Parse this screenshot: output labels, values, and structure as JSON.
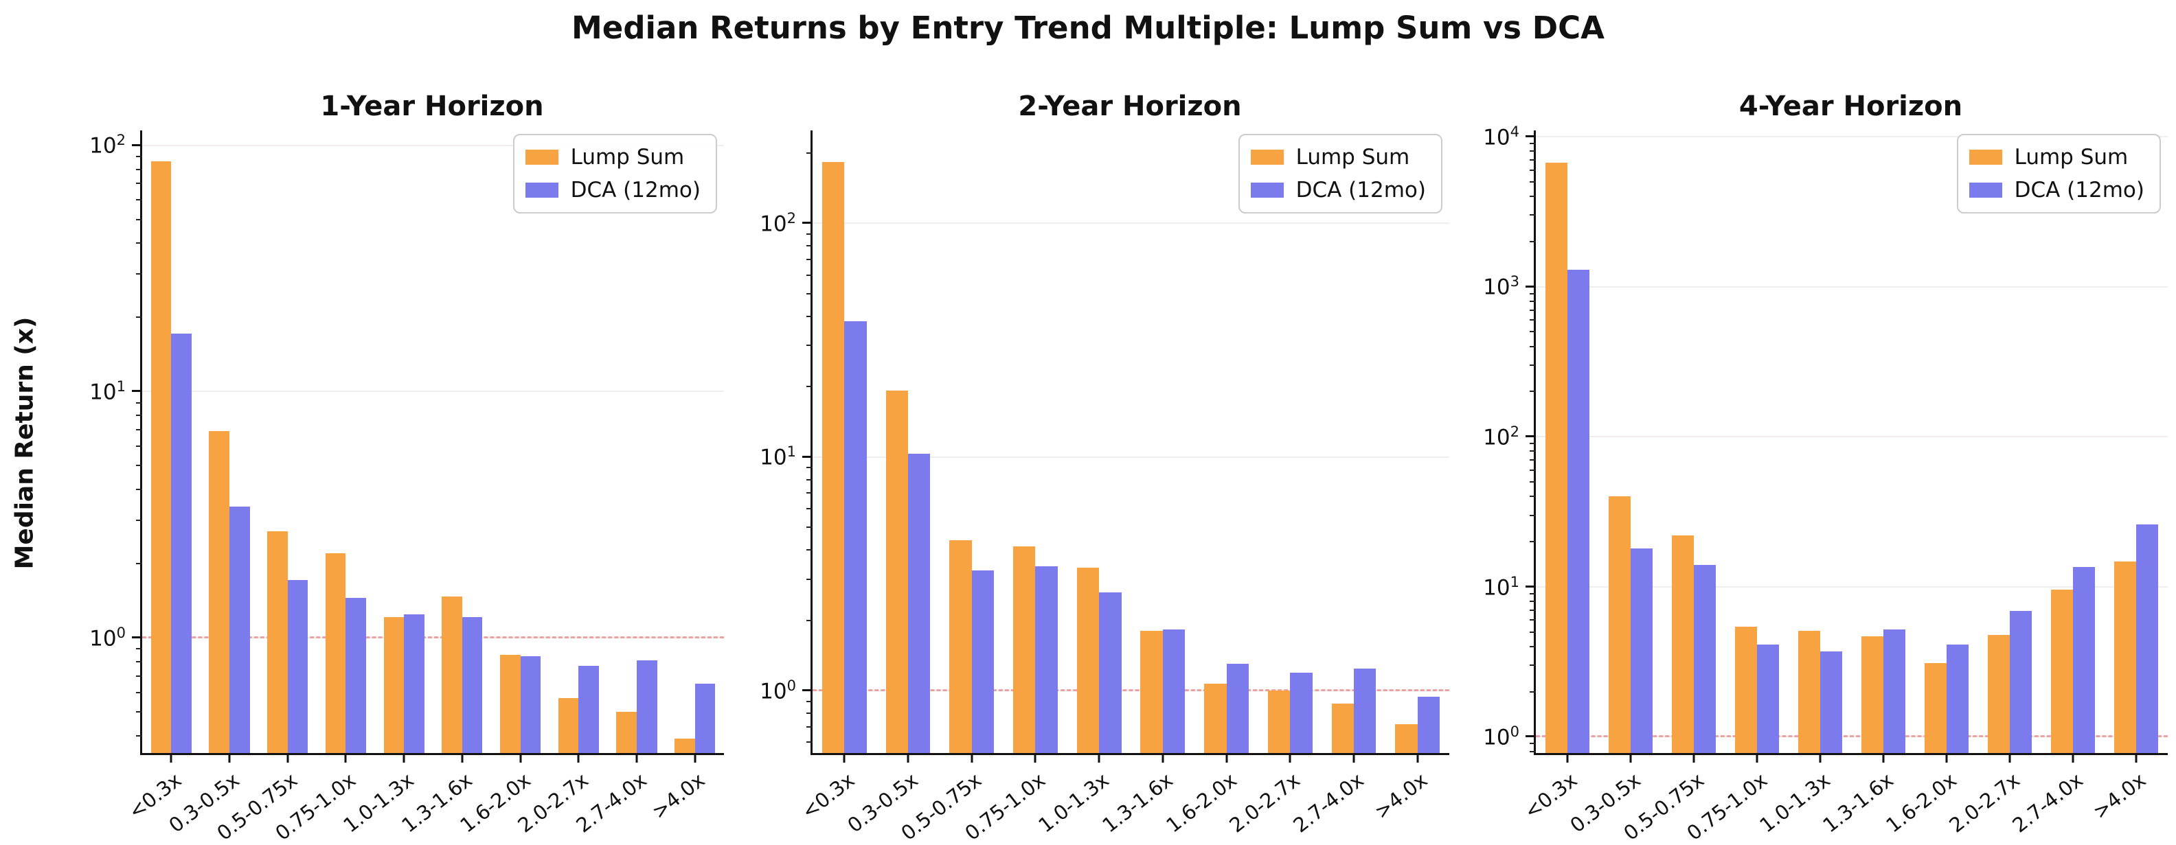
{
  "chart_data": {
    "type": "bar",
    "title": "Median Returns by Entry Trend Multiple: Lump Sum vs DCA",
    "ylabel": "Median Return (x)",
    "legend": [
      "Lump Sum",
      "DCA (12mo)"
    ],
    "legend_position": "upper right",
    "grid": "horizontal decade gridlines, faint",
    "yscale": "log",
    "refline_y": 1.0,
    "colors": {
      "lump_sum": "#F7A342",
      "dca": "#7B7BED",
      "refline": "#E55C5C",
      "gridline": "#F2EDED"
    },
    "categories": [
      "<0.3x",
      "0.3-0.5x",
      "0.5-0.75x",
      "0.75-1.0x",
      "1.0-1.3x",
      "1.3-1.6x",
      "1.6-2.0x",
      "2.0-2.7x",
      "2.7-4.0x",
      ">4.0x"
    ],
    "subplots": [
      {
        "title": "1-Year Horizon",
        "ylim": [
          0.34,
          115
        ],
        "y_tick_exponents": [
          0,
          1,
          2
        ],
        "series": [
          {
            "name": "Lump Sum",
            "values": [
              86,
              6.9,
              2.7,
              2.2,
              1.21,
              1.47,
              0.85,
              0.57,
              0.5,
              0.39
            ]
          },
          {
            "name": "DCA (12mo)",
            "values": [
              17.2,
              3.4,
              1.72,
              1.45,
              1.24,
              1.21,
              0.84,
              0.77,
              0.81,
              0.65
            ]
          }
        ]
      },
      {
        "title": "2-Year Horizon",
        "ylim": [
          0.54,
          250
        ],
        "y_tick_exponents": [
          0,
          1,
          2
        ],
        "series": [
          {
            "name": "Lump Sum",
            "values": [
              183,
              19.2,
              4.4,
              4.15,
              3.35,
              1.8,
              1.07,
              1.0,
              0.88,
              0.72
            ]
          },
          {
            "name": "DCA (12mo)",
            "values": [
              38,
              10.3,
              3.27,
              3.4,
              2.64,
              1.82,
              1.3,
              1.19,
              1.24,
              0.94
            ]
          }
        ]
      },
      {
        "title": "4-Year Horizon",
        "ylim": [
          0.78,
          11000
        ],
        "y_tick_exponents": [
          0,
          1,
          2,
          3,
          4
        ],
        "series": [
          {
            "name": "Lump Sum",
            "values": [
              6700,
              40,
              22,
              5.4,
              5.1,
              4.7,
              3.1,
              4.8,
              9.6,
              14.8
            ]
          },
          {
            "name": "DCA (12mo)",
            "values": [
              1300,
              18,
              14,
              4.1,
              3.7,
              5.2,
              4.1,
              6.9,
              13.5,
              26
            ]
          }
        ]
      }
    ]
  }
}
